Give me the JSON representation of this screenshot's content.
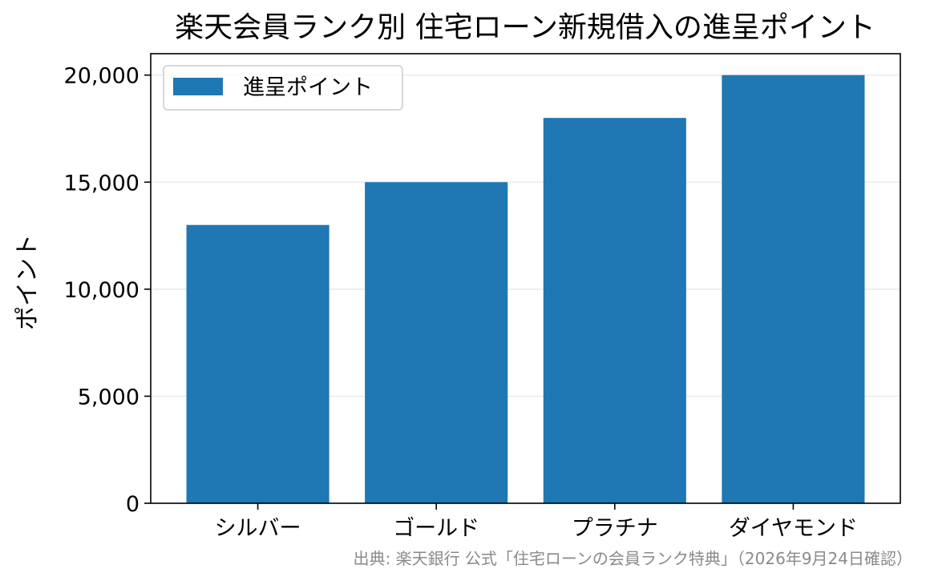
{
  "chart_data": {
    "type": "bar",
    "title": "楽天会員ランク別 住宅ローン新規借入の進呈ポイント",
    "xlabel": "",
    "ylabel": "ポイント",
    "categories": [
      "シルバー",
      "ゴールド",
      "プラチナ",
      "ダイヤモンド"
    ],
    "series": [
      {
        "name": "進呈ポイント",
        "values": [
          13000,
          15000,
          18000,
          20000
        ],
        "color": "#1f77b4"
      }
    ],
    "ylim": [
      0,
      21000
    ],
    "yticks": [
      0,
      5000,
      10000,
      15000,
      20000
    ],
    "ytick_labels": [
      "0",
      "5,000",
      "10,000",
      "15,000",
      "20,000"
    ],
    "grid": "y",
    "legend_position": "top-left"
  },
  "source_note": "出典: 楽天銀行 公式「住宅ローンの会員ランク特典」（2026年9月24日確認）"
}
